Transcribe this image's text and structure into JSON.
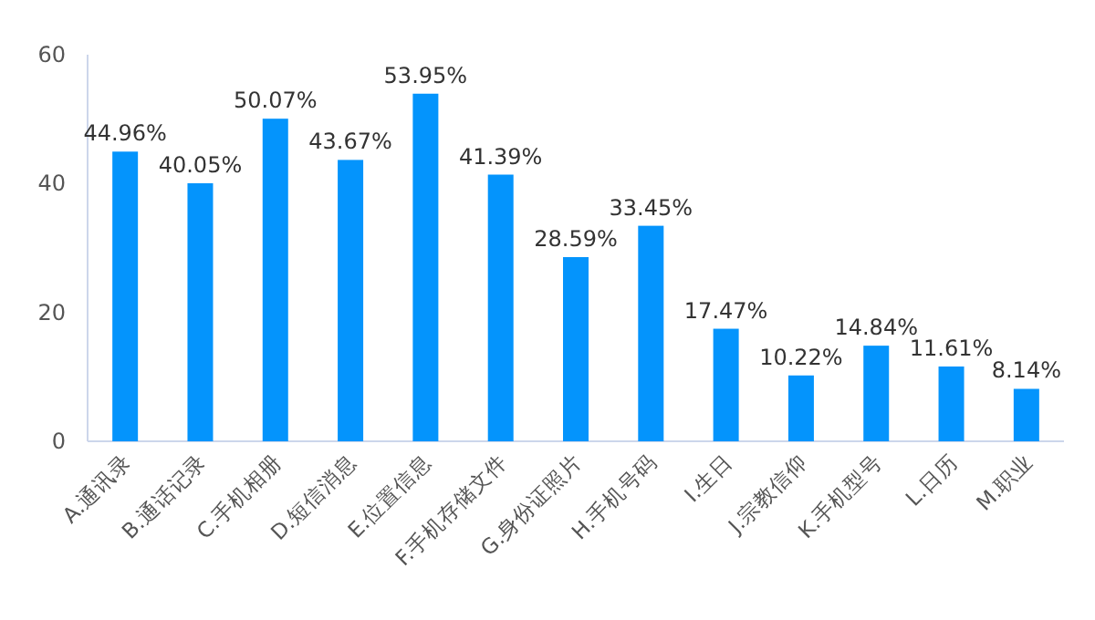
{
  "chart_data": {
    "type": "bar",
    "categories": [
      "A.通讯录",
      "B.通话记录",
      "C.手机相册",
      "D.短信消息",
      "E.位置信息",
      "F.手机存储文件",
      "G.身份证照片",
      "H.手机号码",
      "I.生日",
      "J.宗教信仰",
      "K.手机型号",
      "L.日历",
      "M.职业"
    ],
    "values": [
      44.96,
      40.05,
      50.07,
      43.67,
      53.95,
      41.39,
      28.59,
      33.45,
      17.47,
      10.22,
      14.84,
      11.61,
      8.14
    ],
    "value_labels": [
      "44.96%",
      "40.05%",
      "50.07%",
      "43.67%",
      "53.95%",
      "41.39%",
      "28.59%",
      "33.45%",
      "17.47%",
      "10.22%",
      "14.84%",
      "11.61%",
      "8.14%"
    ],
    "color": "#0494fc",
    "ylim": [
      0,
      60
    ],
    "yticks": [
      0,
      20,
      40,
      60
    ],
    "grid": false
  }
}
